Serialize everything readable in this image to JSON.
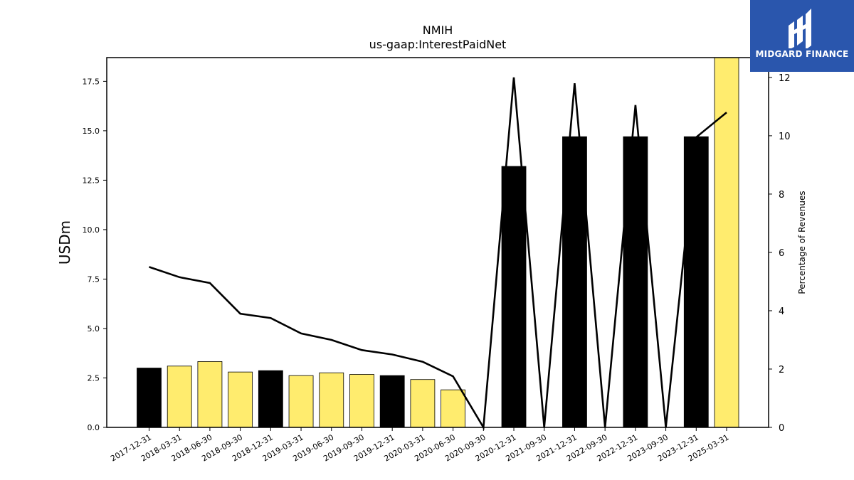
{
  "colors": {
    "bar_fill": "#ffec6e",
    "bar_highlight": "#000000",
    "line": "#000000",
    "brand": "#2a56ad"
  },
  "logo": {
    "text": "MIDGARD FINANCE",
    "icon": "midgard-logo-icon"
  },
  "chart_data": {
    "type": "bar",
    "title": "NMIH",
    "subtitle": "us-gaap:InterestPaidNet",
    "ylabel": "USDm",
    "y2label": "Percentage of Revenues",
    "ylim": [
      0,
      18.7
    ],
    "y2lim": [
      0,
      12.68
    ],
    "yticks": [
      "0.0",
      "2.5",
      "5.0",
      "7.5",
      "10.0",
      "12.5",
      "15.0",
      "17.5"
    ],
    "y2ticks": [
      "0",
      "2",
      "4",
      "6",
      "8",
      "10",
      "12"
    ],
    "categories": [
      "2017-12-31",
      "2018-03-31",
      "2018-06-30",
      "2018-09-30",
      "2018-12-31",
      "2019-03-31",
      "2019-06-30",
      "2019-09-30",
      "2019-12-31",
      "2020-03-31",
      "2020-06-30",
      "2020-09-30",
      "2020-12-31",
      "2021-09-30",
      "2021-12-31",
      "2022-09-30",
      "2022-12-31",
      "2023-09-30",
      "2023-12-31",
      "2025-03-31"
    ],
    "series": [
      {
        "type": "bar",
        "axis": "left",
        "values": [
          3.0,
          3.1,
          3.33,
          2.8,
          2.87,
          2.62,
          2.76,
          2.68,
          2.62,
          2.42,
          1.9,
          null,
          13.2,
          null,
          14.7,
          null,
          14.7,
          null,
          14.7,
          18.7
        ],
        "highlight": [
          true,
          false,
          false,
          false,
          true,
          false,
          false,
          false,
          true,
          false,
          false,
          false,
          true,
          false,
          true,
          false,
          true,
          false,
          true,
          false
        ]
      },
      {
        "type": "line",
        "axis": "right",
        "values": [
          5.5,
          5.15,
          4.95,
          3.9,
          3.75,
          3.22,
          3.0,
          2.65,
          2.5,
          2.25,
          1.75,
          0,
          12.0,
          0,
          11.8,
          0,
          11.05,
          0,
          9.95,
          10.8
        ]
      }
    ],
    "grid": false
  }
}
